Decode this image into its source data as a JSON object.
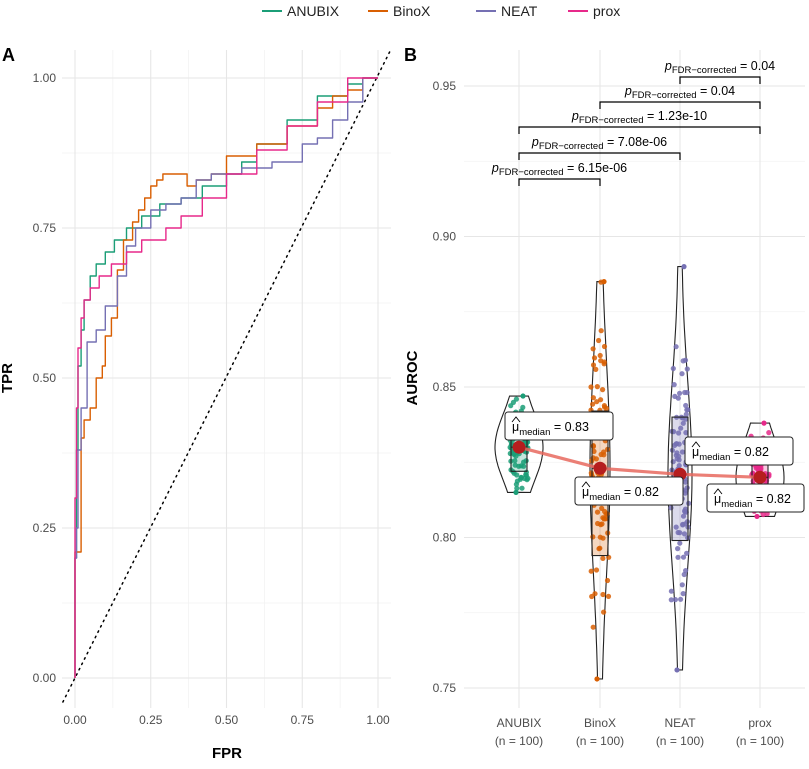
{
  "legend": {
    "items": [
      {
        "name": "ANUBIX",
        "color": "#1b9e77"
      },
      {
        "name": "BinoX",
        "color": "#d95f02"
      },
      {
        "name": "NEAT",
        "color": "#7570b3"
      },
      {
        "name": "prox",
        "color": "#e7298a"
      }
    ]
  },
  "chart_data": [
    {
      "panel": "A",
      "type": "line",
      "xlabel": "FPR",
      "ylabel": "TPR",
      "xlim": [
        0,
        1
      ],
      "ylim": [
        0,
        1
      ],
      "x_ticks": [
        "0.00",
        "0.25",
        "0.50",
        "0.75",
        "1.00"
      ],
      "y_ticks": [
        "0.00",
        "0.25",
        "0.50",
        "0.75",
        "1.00"
      ],
      "diagonal": "dotted reference line y = x",
      "series": [
        {
          "name": "ANUBIX",
          "color": "#1b9e77",
          "points": [
            [
              0,
              0
            ],
            [
              0.005,
              0.2
            ],
            [
              0.01,
              0.38
            ],
            [
              0.02,
              0.52
            ],
            [
              0.03,
              0.58
            ],
            [
              0.05,
              0.63
            ],
            [
              0.07,
              0.67
            ],
            [
              0.1,
              0.69
            ],
            [
              0.13,
              0.71
            ],
            [
              0.17,
              0.73
            ],
            [
              0.22,
              0.75
            ],
            [
              0.28,
              0.77
            ],
            [
              0.35,
              0.79
            ],
            [
              0.42,
              0.8
            ],
            [
              0.5,
              0.82
            ],
            [
              0.55,
              0.84
            ],
            [
              0.6,
              0.86
            ],
            [
              0.7,
              0.89
            ],
            [
              0.8,
              0.93
            ],
            [
              0.9,
              0.97
            ],
            [
              0.95,
              0.99
            ],
            [
              1,
              1
            ]
          ]
        },
        {
          "name": "BinoX",
          "color": "#d95f02",
          "points": [
            [
              0,
              0
            ],
            [
              0.01,
              0.21
            ],
            [
              0.02,
              0.21
            ],
            [
              0.03,
              0.4
            ],
            [
              0.05,
              0.43
            ],
            [
              0.07,
              0.45
            ],
            [
              0.09,
              0.5
            ],
            [
              0.1,
              0.52
            ],
            [
              0.12,
              0.57
            ],
            [
              0.14,
              0.6
            ],
            [
              0.16,
              0.68
            ],
            [
              0.19,
              0.73
            ],
            [
              0.21,
              0.76
            ],
            [
              0.23,
              0.78
            ],
            [
              0.25,
              0.8
            ],
            [
              0.27,
              0.82
            ],
            [
              0.29,
              0.83
            ],
            [
              0.33,
              0.84
            ],
            [
              0.37,
              0.84
            ],
            [
              0.4,
              0.82
            ],
            [
              0.45,
              0.83
            ],
            [
              0.5,
              0.84
            ],
            [
              0.6,
              0.87
            ],
            [
              0.7,
              0.89
            ],
            [
              0.8,
              0.92
            ],
            [
              0.85,
              0.95
            ],
            [
              0.9,
              0.97
            ],
            [
              0.95,
              0.98
            ],
            [
              1,
              1
            ]
          ]
        },
        {
          "name": "NEAT",
          "color": "#7570b3",
          "points": [
            [
              0,
              0
            ],
            [
              0.005,
              0.2
            ],
            [
              0.01,
              0.25
            ],
            [
              0.02,
              0.38
            ],
            [
              0.04,
              0.45
            ],
            [
              0.07,
              0.56
            ],
            [
              0.1,
              0.58
            ],
            [
              0.14,
              0.62
            ],
            [
              0.17,
              0.67
            ],
            [
              0.2,
              0.72
            ],
            [
              0.25,
              0.75
            ],
            [
              0.3,
              0.78
            ],
            [
              0.35,
              0.79
            ],
            [
              0.4,
              0.8
            ],
            [
              0.45,
              0.83
            ],
            [
              0.5,
              0.84
            ],
            [
              0.55,
              0.84
            ],
            [
              0.6,
              0.85
            ],
            [
              0.65,
              0.85
            ],
            [
              0.7,
              0.86
            ],
            [
              0.75,
              0.86
            ],
            [
              0.8,
              0.89
            ],
            [
              0.85,
              0.9
            ],
            [
              0.9,
              0.93
            ],
            [
              0.95,
              0.96
            ],
            [
              1,
              1
            ]
          ]
        },
        {
          "name": "prox",
          "color": "#e7298a",
          "points": [
            [
              0,
              0
            ],
            [
              0.005,
              0.3
            ],
            [
              0.01,
              0.45
            ],
            [
              0.02,
              0.55
            ],
            [
              0.03,
              0.6
            ],
            [
              0.05,
              0.63
            ],
            [
              0.08,
              0.65
            ],
            [
              0.12,
              0.67
            ],
            [
              0.17,
              0.69
            ],
            [
              0.22,
              0.71
            ],
            [
              0.3,
              0.73
            ],
            [
              0.35,
              0.75
            ],
            [
              0.42,
              0.77
            ],
            [
              0.5,
              0.8
            ],
            [
              0.6,
              0.84
            ],
            [
              0.7,
              0.88
            ],
            [
              0.8,
              0.92
            ],
            [
              0.9,
              0.96
            ],
            [
              1,
              1
            ]
          ]
        }
      ]
    },
    {
      "panel": "B",
      "type": "violin",
      "ylabel": "AUROC",
      "ylim": [
        0.745,
        0.96
      ],
      "y_ticks": [
        "0.75",
        "0.80",
        "0.85",
        "0.90",
        "0.95"
      ],
      "categories": [
        "ANUBIX",
        "BinoX",
        "NEAT",
        "prox"
      ],
      "n_labels": [
        "(n = 100)",
        "(n = 100)",
        "(n = 100)",
        "(n = 100)"
      ],
      "groups": [
        {
          "name": "ANUBIX",
          "color": "#1b9e77",
          "min": 0.815,
          "q1": 0.822,
          "median": 0.83,
          "q3": 0.837,
          "max": 0.847
        },
        {
          "name": "BinoX",
          "color": "#d95f02",
          "min": 0.753,
          "q1": 0.794,
          "median": 0.823,
          "q3": 0.842,
          "max": 0.885
        },
        {
          "name": "NEAT",
          "color": "#7570b3",
          "min": 0.756,
          "q1": 0.799,
          "median": 0.821,
          "q3": 0.84,
          "max": 0.89
        },
        {
          "name": "prox",
          "color": "#e7298a",
          "min": 0.807,
          "q1": 0.812,
          "median": 0.82,
          "q3": 0.828,
          "max": 0.838
        }
      ],
      "median_labels": [
        {
          "mu": "μ",
          "sub": "median",
          "value": "= 0.83"
        },
        {
          "mu": "μ",
          "sub": "median",
          "value": "= 0.82"
        },
        {
          "mu": "μ",
          "sub": "median",
          "value": "= 0.82"
        },
        {
          "mu": "μ",
          "sub": "median",
          "value": "= 0.82"
        }
      ],
      "comparisons": [
        {
          "from": "ANUBIX",
          "to": "BinoX",
          "p": "p",
          "sub": "FDR−corrected",
          "value": "= 6.15e-06",
          "y": 0.927
        },
        {
          "from": "ANUBIX",
          "to": "NEAT",
          "p": "p",
          "sub": "FDR−corrected",
          "value": "= 7.08e-06",
          "y": 0.936
        },
        {
          "from": "ANUBIX",
          "to": "prox",
          "p": "p",
          "sub": "FDR−corrected",
          "value": "= 1.23e-10",
          "y": 0.944
        },
        {
          "from": "BinoX",
          "to": "prox",
          "p": "p",
          "sub": "FDR−corrected",
          "value": "= 0.04",
          "y": 0.9455
        },
        {
          "from": "NEAT",
          "to": "prox",
          "p": "p",
          "sub": "FDR−corrected",
          "value": "= 0.04",
          "y": 0.952
        }
      ]
    }
  ],
  "panel_labels": {
    "a": "A",
    "b": "B"
  }
}
